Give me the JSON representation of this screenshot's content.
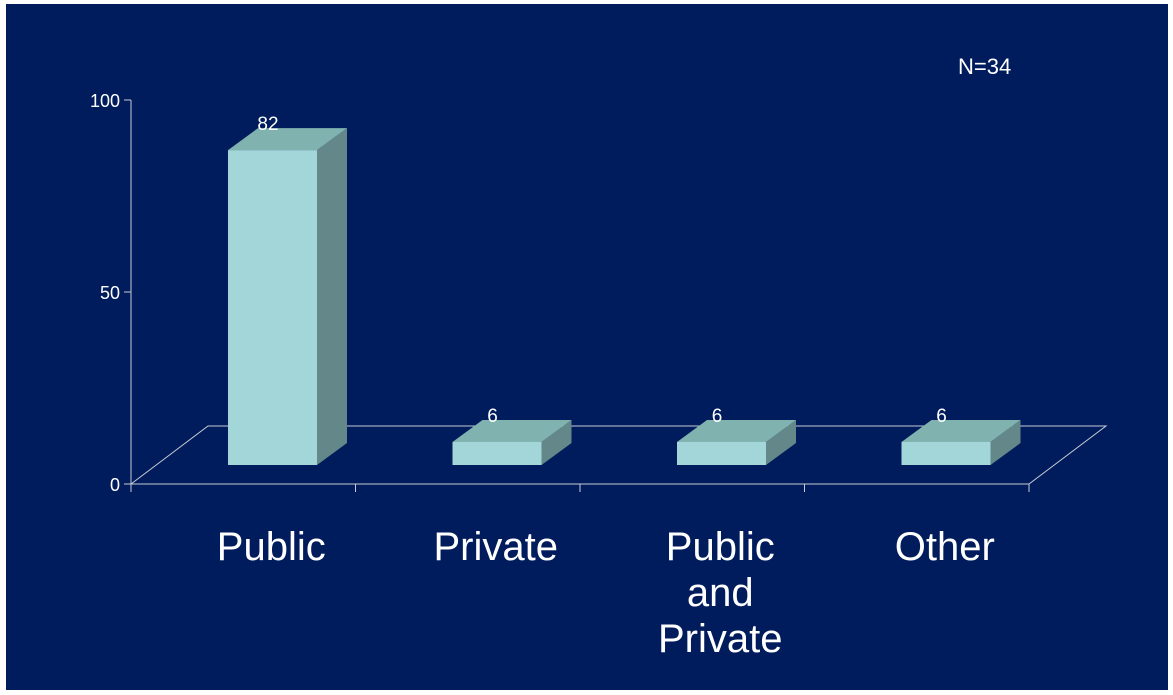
{
  "chart_data": {
    "type": "bar",
    "style": "3d",
    "categories": [
      "Public",
      "Private",
      "Public and Private",
      "Other"
    ],
    "category_label_lines": [
      [
        "Public"
      ],
      [
        "Private"
      ],
      [
        "Public",
        "and",
        "Private"
      ],
      [
        "Other"
      ]
    ],
    "values": [
      82,
      6,
      6,
      6
    ],
    "data_labels": [
      "82",
      "6",
      "6",
      "6"
    ],
    "ylim": [
      0,
      100
    ],
    "yticks": [
      0,
      50,
      100
    ],
    "annotation": "N=34",
    "grid": false,
    "colors": {
      "background": "#001c5c",
      "bar_front": "#a3d6d8",
      "bar_top": "#80b2b0",
      "bar_side": "#64888a",
      "axis": "#c8ccd6",
      "text": "#ffffff"
    }
  }
}
